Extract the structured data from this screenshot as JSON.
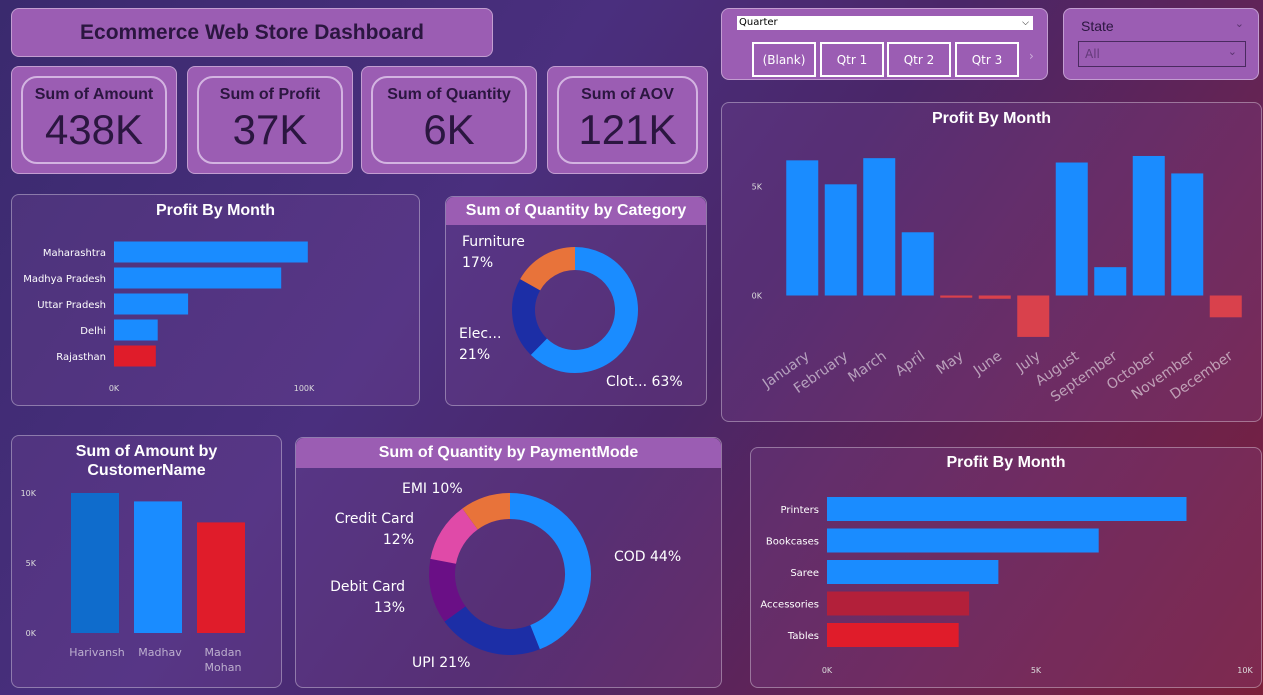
{
  "dashboard": {
    "title": "Ecommerce Web Store Dashboard"
  },
  "kpis": [
    {
      "label": "Sum of Amount",
      "value": "438K"
    },
    {
      "label": "Sum of Profit",
      "value": "37K"
    },
    {
      "label": "Sum of Quantity",
      "value": "6K"
    },
    {
      "label": "Sum of AOV",
      "value": "121K"
    }
  ],
  "slicers": {
    "quarter": {
      "label": "Quarter",
      "buttons": [
        "(Blank)",
        "Qtr 1",
        "Qtr 2",
        "Qtr 3"
      ]
    },
    "state": {
      "label": "State",
      "selected": "All"
    }
  },
  "colors": {
    "blue": "#1a8cff",
    "red": "#e01c2a",
    "darkred": "#b3203a",
    "orange": "#e8733a",
    "navy": "#1c2ea6",
    "pink": "#e04aa8",
    "purple": "#6a0f86",
    "darkblue": "#0f6ccc"
  },
  "chart_data": [
    {
      "id": "state",
      "type": "bar",
      "orientation": "horizontal",
      "title": "Profit By Month",
      "categories": [
        "Maharashtra",
        "Madhya Pradesh",
        "Uttar Pradesh",
        "Delhi",
        "Rajasthan"
      ],
      "values": [
        102000,
        88000,
        39000,
        23000,
        22000
      ],
      "colors": [
        "#1a8cff",
        "#1a8cff",
        "#1a8cff",
        "#1a8cff",
        "#e01c2a"
      ],
      "xlim": [
        0,
        100000
      ],
      "ticks": [
        {
          "v": 0,
          "label": "0K"
        },
        {
          "v": 100000,
          "label": "100K"
        }
      ]
    },
    {
      "id": "category",
      "type": "pie",
      "title": "Sum of Quantity by Category",
      "slices": [
        {
          "name": "Clot...",
          "pct": "63%",
          "value": 63,
          "color": "#1a8cff"
        },
        {
          "name": "Elec...",
          "pct": "21%",
          "value": 21,
          "color": "#1c2ea6"
        },
        {
          "name": "Furniture",
          "pct": "17%",
          "value": 17,
          "color": "#e8733a"
        }
      ]
    },
    {
      "id": "month",
      "type": "bar",
      "title": "Profit By Month",
      "categories": [
        "January",
        "February",
        "March",
        "April",
        "May",
        "June",
        "July",
        "August",
        "September",
        "October",
        "November",
        "December"
      ],
      "values": [
        6200,
        5100,
        6300,
        2900,
        -100,
        -150,
        -1900,
        6100,
        1300,
        6400,
        5600,
        -1000
      ],
      "ylim": [
        -2500,
        7500
      ],
      "ticks": [
        {
          "v": 0,
          "label": "0K"
        },
        {
          "v": 5000,
          "label": "5K"
        }
      ]
    },
    {
      "id": "customer",
      "type": "bar",
      "title": "Sum of Amount by CustomerName",
      "categories": [
        "Harivansh",
        "Madhav",
        "Madan Mohan"
      ],
      "values": [
        10000,
        9400,
        7900
      ],
      "colors": [
        "#0f6ccc",
        "#1a8cff",
        "#e01c2a"
      ],
      "ylim": [
        0,
        10000
      ],
      "ticks": [
        {
          "v": 0,
          "label": "0K"
        },
        {
          "v": 5000,
          "label": "5K"
        },
        {
          "v": 10000,
          "label": "10K"
        }
      ]
    },
    {
      "id": "payment",
      "type": "pie",
      "title": "Sum of Quantity by PaymentMode",
      "slices": [
        {
          "name": "COD",
          "pct": "44%",
          "value": 44,
          "color": "#1a8cff"
        },
        {
          "name": "UPI",
          "pct": "21%",
          "value": 21,
          "color": "#1c2ea6"
        },
        {
          "name": "Debit Card",
          "pct": "13%",
          "value": 13,
          "color": "#6a0f86"
        },
        {
          "name": "Credit Card",
          "pct": "12%",
          "value": 12,
          "color": "#e04aa8"
        },
        {
          "name": "EMI",
          "pct": "10%",
          "value": 10,
          "color": "#e8733a"
        }
      ]
    },
    {
      "id": "subcat",
      "type": "bar",
      "orientation": "horizontal",
      "title": "Profit By Month",
      "categories": [
        "Printers",
        "Bookcases",
        "Saree",
        "Accessories",
        "Tables"
      ],
      "values": [
        8600,
        6500,
        4100,
        3400,
        3150
      ],
      "colors": [
        "#1a8cff",
        "#1a8cff",
        "#1a8cff",
        "#b3203a",
        "#e01c2a"
      ],
      "xlim": [
        0,
        10000
      ],
      "ticks": [
        {
          "v": 0,
          "label": "0K"
        },
        {
          "v": 5000,
          "label": "5K"
        },
        {
          "v": 10000,
          "label": "10K"
        }
      ]
    }
  ]
}
